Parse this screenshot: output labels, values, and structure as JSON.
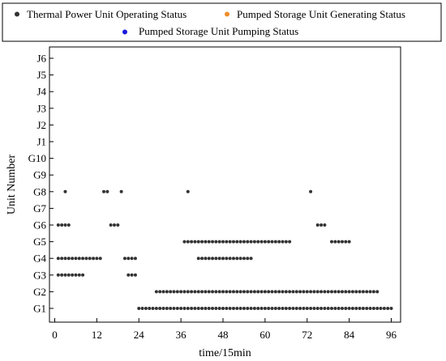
{
  "chart_data": {
    "type": "scatter",
    "xlabel": "time/15min",
    "ylabel": "Unit Number",
    "xlim": [
      -1,
      97
    ],
    "x_ticks": [
      0,
      12,
      24,
      36,
      48,
      60,
      72,
      84,
      96
    ],
    "x_tick_labels": [
      "0",
      "12",
      "24",
      "36",
      "48",
      "60",
      "72",
      "84",
      "96"
    ],
    "y_categories": [
      "G1",
      "G2",
      "G3",
      "G4",
      "G5",
      "G6",
      "G7",
      "G8",
      "G9",
      "G10",
      "J1",
      "J2",
      "J3",
      "J4",
      "J5",
      "J6"
    ],
    "grid": false,
    "legend": {
      "placement": "top",
      "entries": [
        {
          "name": "Thermal Power Unit Operating Status",
          "color": "#333333"
        },
        {
          "name": "Pumped Storage Unit Generating Status",
          "color": "#f08c2a"
        },
        {
          "name": "Pumped Storage Unit Pumping Status",
          "color": "#1a1adb"
        }
      ]
    },
    "series": [
      {
        "name": "Thermal Power Unit Operating Status",
        "color": "#333333",
        "units": [
          {
            "unit": "G1",
            "ranges": [
              [
                24,
                96
              ]
            ]
          },
          {
            "unit": "G2",
            "ranges": [
              [
                29,
                92
              ]
            ]
          },
          {
            "unit": "G3",
            "ranges": [
              [
                1,
                8
              ],
              [
                21,
                23
              ]
            ]
          },
          {
            "unit": "G4",
            "ranges": [
              [
                1,
                13
              ],
              [
                20,
                23
              ],
              [
                41,
                56
              ]
            ]
          },
          {
            "unit": "G5",
            "ranges": [
              [
                37,
                67
              ],
              [
                79,
                84
              ]
            ]
          },
          {
            "unit": "G6",
            "ranges": [
              [
                1,
                4
              ],
              [
                16,
                18
              ],
              [
                75,
                77
              ]
            ]
          },
          {
            "unit": "G8",
            "ranges": [
              [
                3,
                3
              ],
              [
                14,
                15
              ],
              [
                19,
                19
              ],
              [
                38,
                38
              ],
              [
                73,
                73
              ]
            ]
          }
        ]
      },
      {
        "name": "Pumped Storage Unit Generating Status",
        "color": "#f08c2a",
        "units": []
      },
      {
        "name": "Pumped Storage Unit Pumping Status",
        "color": "#1a1adb",
        "units": []
      }
    ]
  }
}
